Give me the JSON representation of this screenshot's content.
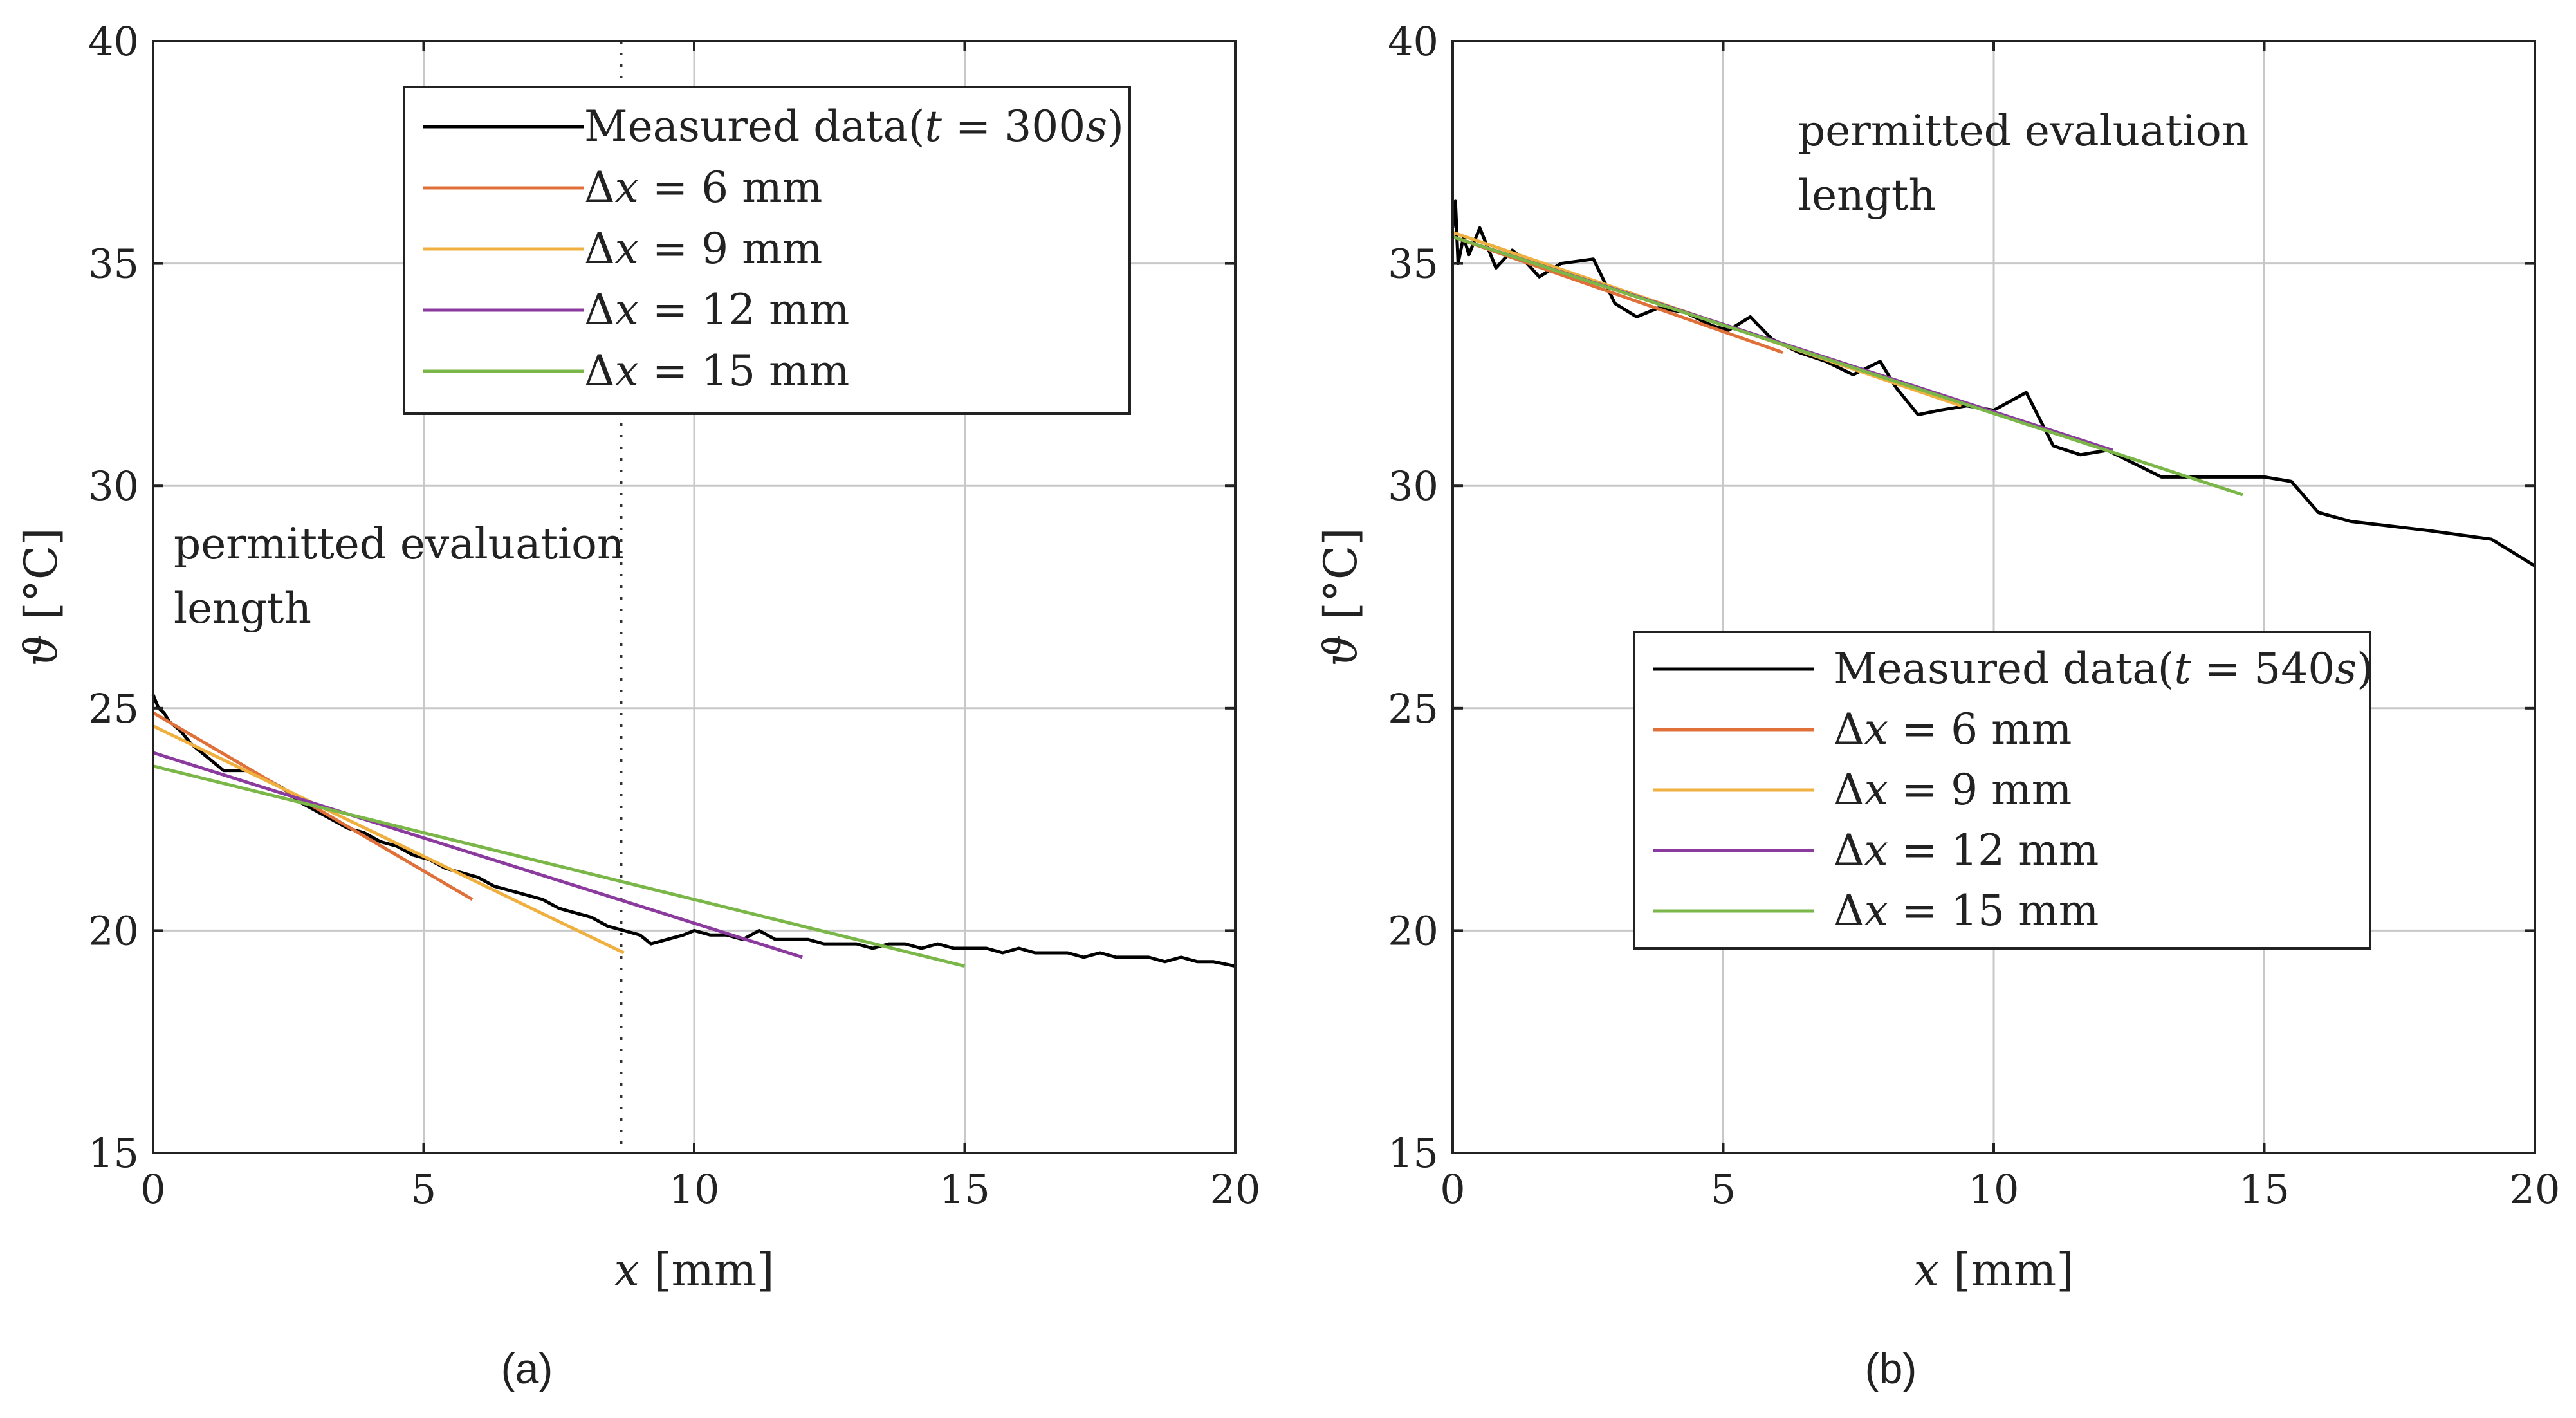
{
  "chart_data": [
    {
      "type": "line",
      "panel_label": "(a)",
      "xlabel_var": "x",
      "xlabel_unit": " [mm]",
      "ylabel_var": "ϑ",
      "ylabel_unit": " [°C]",
      "xlim": [
        0,
        20
      ],
      "ylim": [
        15,
        40
      ],
      "xticks": [
        0,
        5,
        10,
        15,
        20
      ],
      "yticks": [
        15,
        20,
        25,
        30,
        35,
        40
      ],
      "grid": true,
      "legend_position": "top-right",
      "annotation": [
        "permitted evaluation",
        "length"
      ],
      "vline_x": 8.65,
      "series": [
        {
          "name": "Measured data(t = 300s)",
          "legend_main": "Measured data(",
          "legend_var": "t",
          "legend_rest": " = 300",
          "legend_unit": "s",
          "legend_close": ")",
          "color": "#000000",
          "x": [
            0,
            0.1,
            0.2,
            0.3,
            0.5,
            0.7,
            0.9,
            1.1,
            1.3,
            1.5,
            1.8,
            2.1,
            2.4,
            2.7,
            3.0,
            3.3,
            3.6,
            3.9,
            4.2,
            4.5,
            4.8,
            5.1,
            5.4,
            5.7,
            6.0,
            6.3,
            6.6,
            6.9,
            7.2,
            7.5,
            7.8,
            8.1,
            8.4,
            8.7,
            9.0,
            9.2,
            9.5,
            9.8,
            10.0,
            10.3,
            10.6,
            10.9,
            11.2,
            11.5,
            11.8,
            12.1,
            12.4,
            12.7,
            13.0,
            13.3,
            13.6,
            13.9,
            14.2,
            14.5,
            14.8,
            15.1,
            15.4,
            15.7,
            16.0,
            16.3,
            16.6,
            16.9,
            17.2,
            17.5,
            17.8,
            18.1,
            18.4,
            18.7,
            19.0,
            19.3,
            19.6,
            20.0
          ],
          "values": [
            25.3,
            25.0,
            24.9,
            24.7,
            24.5,
            24.2,
            24.0,
            23.8,
            23.6,
            23.6,
            23.6,
            23.4,
            23.2,
            22.9,
            22.7,
            22.5,
            22.3,
            22.2,
            22.0,
            21.9,
            21.7,
            21.6,
            21.4,
            21.3,
            21.2,
            21.0,
            20.9,
            20.8,
            20.7,
            20.5,
            20.4,
            20.3,
            20.1,
            20.0,
            19.9,
            19.7,
            19.8,
            19.9,
            20.0,
            19.9,
            19.9,
            19.8,
            20.0,
            19.8,
            19.8,
            19.8,
            19.7,
            19.7,
            19.7,
            19.6,
            19.7,
            19.7,
            19.6,
            19.7,
            19.6,
            19.6,
            19.6,
            19.5,
            19.6,
            19.5,
            19.5,
            19.5,
            19.4,
            19.5,
            19.4,
            19.4,
            19.4,
            19.3,
            19.4,
            19.3,
            19.3,
            19.2
          ]
        },
        {
          "name": "Δx = 6 mm",
          "legend_main": "Δ",
          "legend_var": "x",
          "legend_rest": " = 6 mm",
          "color": "#e0703a",
          "x": [
            0,
            5.9
          ],
          "values": [
            24.9,
            20.7
          ]
        },
        {
          "name": "Δx = 9 mm",
          "legend_main": "Δ",
          "legend_var": "x",
          "legend_rest": " = 9 mm",
          "color": "#f0b040",
          "x": [
            0,
            8.7
          ],
          "values": [
            24.6,
            19.5
          ]
        },
        {
          "name": "Δx = 12 mm",
          "legend_main": "Δ",
          "legend_var": "x",
          "legend_rest": " = 12 mm",
          "color": "#8b3a9e",
          "x": [
            0,
            12.0
          ],
          "values": [
            24.0,
            19.4
          ]
        },
        {
          "name": "Δx = 15 mm",
          "legend_main": "Δ",
          "legend_var": "x",
          "legend_rest": " = 15 mm",
          "color": "#7ab648",
          "x": [
            0,
            15.0
          ],
          "values": [
            23.7,
            19.2
          ]
        }
      ]
    },
    {
      "type": "line",
      "panel_label": "(b)",
      "xlabel_var": "x",
      "xlabel_unit": " [mm]",
      "ylabel_var": "ϑ",
      "ylabel_unit": " [°C]",
      "xlim": [
        0,
        20
      ],
      "ylim": [
        15,
        40
      ],
      "xticks": [
        0,
        5,
        10,
        15,
        20
      ],
      "yticks": [
        15,
        20,
        25,
        30,
        35,
        40
      ],
      "grid": true,
      "legend_position": "center-right",
      "annotation": [
        "permitted evaluation",
        "length"
      ],
      "series": [
        {
          "name": "Measured data(t = 540s)",
          "legend_main": "Measured data(",
          "legend_var": "t",
          "legend_rest": " = 540",
          "legend_unit": "s",
          "legend_close": ")",
          "color": "#000000",
          "x": [
            0,
            0.05,
            0.1,
            0.2,
            0.3,
            0.5,
            0.8,
            1.1,
            1.3,
            1.6,
            2.0,
            2.6,
            3.0,
            3.4,
            3.8,
            4.3,
            4.8,
            5.1,
            5.5,
            5.9,
            6.4,
            6.9,
            7.4,
            7.9,
            8.2,
            8.6,
            9.0,
            9.5,
            10.0,
            10.6,
            11.1,
            11.6,
            12.1,
            12.6,
            13.1,
            13.6,
            14.1,
            14.6,
            15.0,
            15.5,
            16.0,
            16.6,
            17.3,
            18.0,
            18.6,
            19.2,
            19.6,
            20.0
          ],
          "values": [
            35.8,
            36.4,
            35.0,
            35.6,
            35.2,
            35.8,
            34.9,
            35.3,
            35.1,
            34.7,
            35.0,
            35.1,
            34.1,
            33.8,
            34.0,
            33.9,
            33.6,
            33.5,
            33.8,
            33.3,
            33.0,
            32.8,
            32.5,
            32.8,
            32.2,
            31.6,
            31.7,
            31.8,
            31.7,
            32.1,
            30.9,
            30.7,
            30.8,
            30.5,
            30.2,
            30.2,
            30.2,
            30.2,
            30.2,
            30.1,
            29.4,
            29.2,
            29.1,
            29.0,
            28.9,
            28.8,
            28.5,
            28.2
          ]
        },
        {
          "name": "Δx = 6 mm",
          "legend_main": "Δ",
          "legend_var": "x",
          "legend_rest": " = 6 mm",
          "color": "#e0703a",
          "x": [
            0,
            6.1
          ],
          "values": [
            35.6,
            33.0
          ]
        },
        {
          "name": "Δx = 9 mm",
          "legend_main": "Δ",
          "legend_var": "x",
          "legend_rest": " = 9 mm",
          "color": "#f0b040",
          "x": [
            0,
            9.4
          ],
          "values": [
            35.7,
            31.8
          ]
        },
        {
          "name": "Δx = 12 mm",
          "legend_main": "Δ",
          "legend_var": "x",
          "legend_rest": " = 12 mm",
          "color": "#8b3a9e",
          "x": [
            0,
            12.2
          ],
          "values": [
            35.6,
            30.8
          ]
        },
        {
          "name": "Δx = 15 mm",
          "legend_main": "Δ",
          "legend_var": "x",
          "legend_rest": " = 15 mm",
          "color": "#7ab648",
          "x": [
            0,
            14.6
          ],
          "values": [
            35.6,
            29.8
          ]
        }
      ]
    }
  ]
}
